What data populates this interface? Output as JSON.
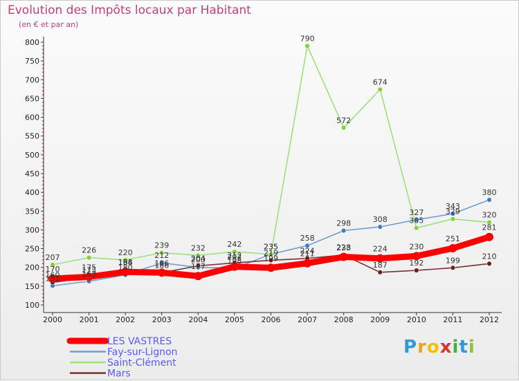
{
  "chart_data": {
    "type": "line",
    "title": "Evolution des Impôts locaux par Habitant",
    "subtitle": "(en € et par an)",
    "xlabel": "",
    "ylabel": "",
    "ylim": [
      100,
      800
    ],
    "yticks": [
      100,
      150,
      200,
      250,
      300,
      350,
      400,
      450,
      500,
      550,
      600,
      650,
      700,
      750,
      800
    ],
    "grid": false,
    "legend_position": "bottom-left",
    "x": [
      "2000",
      "2001",
      "2002",
      "2003",
      "2004",
      "2005",
      "2006",
      "2007",
      "2008",
      "2009",
      "2010",
      "2011",
      "2012"
    ],
    "series": [
      {
        "name": "LES VASTRES",
        "color": "#ff0000",
        "point_color": "#ff0000",
        "values": [
          170,
          175,
          188,
          186,
          177,
          202,
          199,
          211,
          228,
          224,
          230,
          251,
          281
        ],
        "labels": [
          "170",
          "175",
          "188",
          "186",
          "177",
          "202",
          "199",
          "211",
          "228",
          "224",
          "230",
          "251",
          "281"
        ]
      },
      {
        "name": "Fay-sur-Lignon",
        "color": "#6f9fd0",
        "point_color": "#3a7ec8",
        "values": [
          151,
          163,
          180,
          212,
          200,
          198,
          235,
          258,
          298,
          308,
          327,
          343,
          380
        ],
        "labels": [
          "151",
          "163",
          "180",
          "212",
          "200",
          "198",
          "235",
          "258",
          "298",
          "308",
          "327",
          "343",
          "380"
        ]
      },
      {
        "name": "Saint-Clément",
        "color": "#9ee07a",
        "point_color": "#7fd23a",
        "values": [
          207,
          226,
          220,
          239,
          232,
          242,
          235,
          790,
          572,
          674,
          305,
          329,
          320
        ],
        "labels": [
          "207",
          "226",
          "220",
          "239",
          "232",
          "242",
          "235",
          "790",
          "572",
          "674",
          "305",
          "329",
          "320"
        ]
      },
      {
        "name": "Mars",
        "color": "#7a3030",
        "point_color": "#6a1e1e",
        "values": [
          160,
          173,
          194,
          186,
          204,
          212,
          219,
          224,
          233,
          187,
          192,
          199,
          210
        ],
        "labels": [
          "160",
          "173",
          "194",
          "186",
          "204",
          "212",
          "219",
          "224",
          "233",
          "187",
          "192",
          "199",
          "210"
        ]
      }
    ]
  },
  "brand": {
    "letters": [
      "P",
      "r",
      "o",
      "x",
      "i",
      "t",
      "i"
    ],
    "colors": [
      "#2e9ad8",
      "#f0a020",
      "#f5c000",
      "#e03030",
      "#40b040",
      "#2e9ad8",
      "#90c040"
    ]
  }
}
